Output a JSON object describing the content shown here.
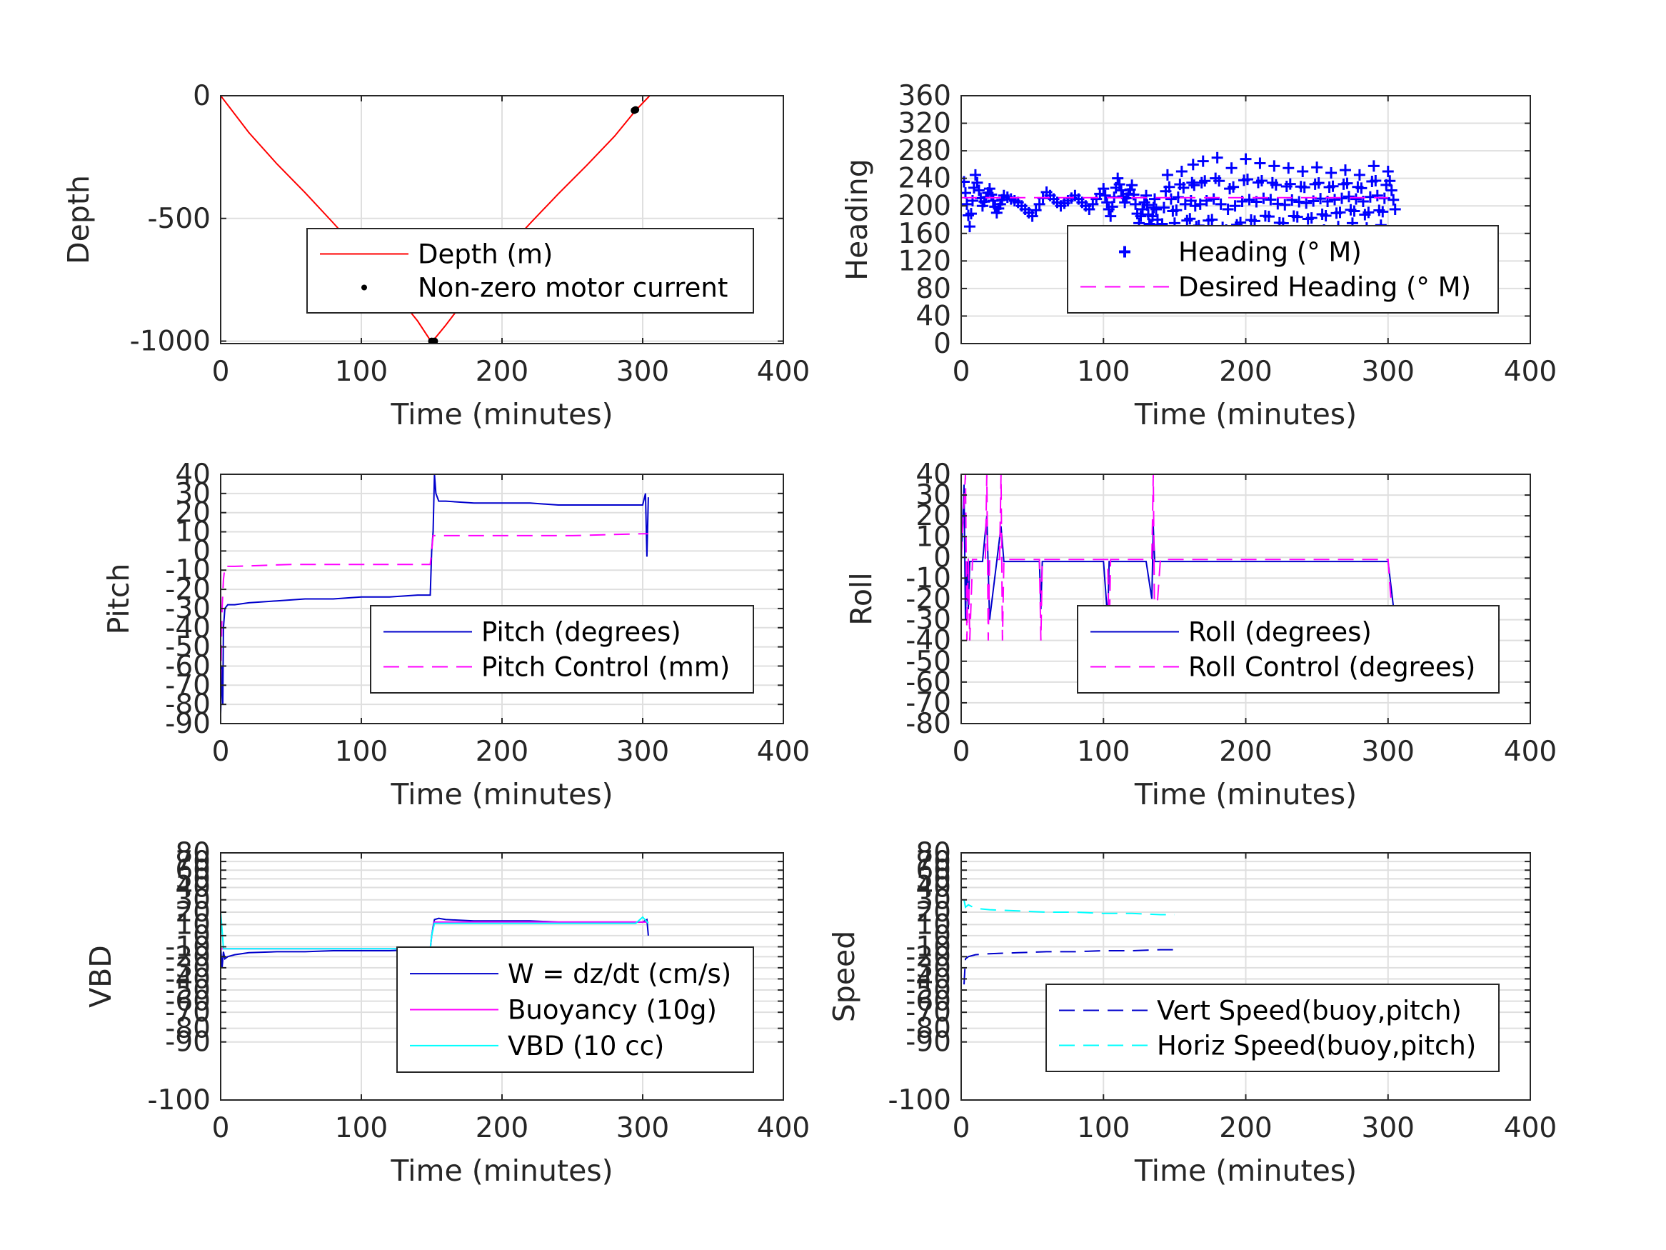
{
  "chart_data": [
    {
      "id": "depth",
      "type": "line",
      "xlabel": "Time (minutes)",
      "ylabel": "Depth",
      "xlim": [
        0,
        400
      ],
      "ylim": [
        -1010,
        0
      ],
      "xticks": [
        "0",
        "100",
        "200",
        "300",
        "400"
      ],
      "yticks": [
        {
          "v": 0,
          "t": "0"
        },
        {
          "v": -500,
          "t": "-500"
        },
        {
          "v": -1000,
          "t": "-1000"
        }
      ],
      "grid": true,
      "legend_position": "center-right",
      "series": [
        {
          "name": "Depth (m)",
          "color": "#ff0000",
          "style": "solid",
          "x": [
            0,
            20,
            40,
            60,
            80,
            100,
            120,
            140,
            150,
            160,
            180,
            200,
            220,
            240,
            260,
            280,
            295,
            305
          ],
          "y": [
            0,
            -150,
            -278,
            -395,
            -518,
            -645,
            -775,
            -918,
            -1005,
            -935,
            -785,
            -645,
            -520,
            -400,
            -285,
            -165,
            -60,
            0
          ]
        },
        {
          "name": "Non-zero motor current",
          "color": "#000000",
          "style": "markers",
          "x": [
            150,
            151,
            152,
            294,
            295
          ],
          "y": [
            -1000,
            -1001,
            -1000,
            -60,
            -57
          ]
        }
      ]
    },
    {
      "id": "heading",
      "type": "scatter",
      "xlabel": "Time (minutes)",
      "ylabel": "Heading",
      "xlim": [
        0,
        400
      ],
      "ylim": [
        0,
        360
      ],
      "xticks": [
        "0",
        "100",
        "200",
        "300",
        "400"
      ],
      "yticks": [
        {
          "v": 0,
          "t": "0"
        },
        {
          "v": 40,
          "t": "40"
        },
        {
          "v": 80,
          "t": "80"
        },
        {
          "v": 120,
          "t": "120"
        },
        {
          "v": 160,
          "t": "160"
        },
        {
          "v": 200,
          "t": "200"
        },
        {
          "v": 240,
          "t": "240"
        },
        {
          "v": 280,
          "t": "280"
        },
        {
          "v": 320,
          "t": "320"
        },
        {
          "v": 360,
          "t": "360"
        }
      ],
      "grid": true,
      "legend_position": "lower-right",
      "series": [
        {
          "name": "Heading (° M)",
          "color": "#0000ff",
          "style": "plus",
          "x": [
            2,
            6,
            10,
            15,
            20,
            25,
            30,
            40,
            50,
            60,
            70,
            80,
            90,
            100,
            105,
            110,
            115,
            120,
            125,
            130,
            133,
            136,
            140,
            145,
            150,
            155,
            160,
            163,
            166,
            170,
            175,
            180,
            185,
            190,
            195,
            200,
            205,
            210,
            215,
            220,
            225,
            230,
            235,
            240,
            245,
            250,
            255,
            260,
            265,
            270,
            275,
            280,
            285,
            290,
            295,
            300,
            305
          ],
          "y": [
            235,
            170,
            245,
            200,
            225,
            190,
            215,
            205,
            185,
            220,
            200,
            215,
            195,
            225,
            185,
            240,
            205,
            230,
            175,
            215,
            160,
            210,
            150,
            245,
            175,
            250,
            155,
            260,
            140,
            265,
            150,
            270,
            135,
            255,
            145,
            268,
            150,
            262,
            160,
            258,
            148,
            255,
            162,
            250,
            158,
            256,
            165,
            248,
            170,
            252,
            175,
            245,
            168,
            258,
            172,
            250,
            195
          ]
        },
        {
          "name": "Desired Heading (° M)",
          "color": "#ff00ff",
          "style": "dashed",
          "x": [
            0,
            50,
            100,
            150,
            200,
            250,
            300
          ],
          "y": [
            212,
            212,
            212,
            212,
            212,
            212,
            212
          ]
        }
      ]
    },
    {
      "id": "pitch",
      "type": "line",
      "xlabel": "Time (minutes)",
      "ylabel": "Pitch",
      "xlim": [
        0,
        400
      ],
      "ylim": [
        -90,
        40
      ],
      "xticks": [
        "0",
        "100",
        "200",
        "300",
        "400"
      ],
      "yticks": [
        {
          "v": 40,
          "t": "40"
        },
        {
          "v": 30,
          "t": "30"
        },
        {
          "v": 20,
          "t": "20"
        },
        {
          "v": 10,
          "t": "10"
        },
        {
          "v": 0,
          "t": "0"
        },
        {
          "v": -10,
          "t": "-10"
        },
        {
          "v": -20,
          "t": "-20"
        },
        {
          "v": -30,
          "t": "-30"
        },
        {
          "v": -40,
          "t": "-40"
        },
        {
          "v": -50,
          "t": "-50"
        },
        {
          "v": -60,
          "t": "-60"
        },
        {
          "v": -70,
          "t": "-70"
        },
        {
          "v": -80,
          "t": "-80"
        },
        {
          "v": -90,
          "t": "-90"
        }
      ],
      "grid": true,
      "legend_position": "lower-right",
      "series": [
        {
          "name": "Pitch (degrees)",
          "color": "#0000cc",
          "style": "solid",
          "x": [
            0,
            1,
            1.5,
            2,
            3,
            5,
            10,
            20,
            40,
            60,
            80,
            100,
            120,
            140,
            149,
            150,
            151,
            152,
            153,
            155,
            160,
            180,
            200,
            220,
            240,
            260,
            280,
            300,
            302,
            303,
            304
          ],
          "y": [
            -85,
            -60,
            -80,
            -40,
            -30,
            -28,
            -28,
            -27,
            -26,
            -25,
            -25,
            -24,
            -24,
            -23,
            -23,
            0,
            10,
            40,
            30,
            26,
            26,
            25,
            25,
            25,
            24,
            24,
            24,
            24,
            30,
            -3,
            28
          ]
        },
        {
          "name": "Pitch Control (mm)",
          "color": "#ff00ff",
          "style": "dashed",
          "x": [
            0,
            1,
            2,
            3,
            10,
            50,
            100,
            149,
            150,
            151,
            152,
            200,
            250,
            300,
            304
          ],
          "y": [
            -70,
            -30,
            -15,
            -8,
            -8,
            -7,
            -7,
            -7,
            0,
            8,
            8,
            8,
            8,
            9,
            9
          ]
        }
      ]
    },
    {
      "id": "roll",
      "type": "line",
      "xlabel": "Time (minutes)",
      "ylabel": "Roll",
      "xlim": [
        0,
        400
      ],
      "ylim": [
        -80,
        40
      ],
      "xticks": [
        "0",
        "100",
        "200",
        "300",
        "400"
      ],
      "yticks": [
        {
          "v": 40,
          "t": "40"
        },
        {
          "v": 30,
          "t": "30"
        },
        {
          "v": 20,
          "t": "20"
        },
        {
          "v": 10,
          "t": "10"
        },
        {
          "v": 0,
          "t": "0"
        },
        {
          "v": -10,
          "t": "-10"
        },
        {
          "v": -20,
          "t": "-20"
        },
        {
          "v": -30,
          "t": "-30"
        },
        {
          "v": -40,
          "t": "-40"
        },
        {
          "v": -50,
          "t": "-50"
        },
        {
          "v": -60,
          "t": "-60"
        },
        {
          "v": -70,
          "t": "-70"
        },
        {
          "v": -80,
          "t": "-80"
        }
      ],
      "grid": true,
      "legend_position": "lower-right",
      "series": [
        {
          "name": "Roll (degrees)",
          "color": "#0000cc",
          "style": "solid",
          "x": [
            0,
            2,
            3,
            4,
            5,
            6,
            10,
            15,
            18,
            20,
            25,
            28,
            30,
            40,
            55,
            56,
            57,
            80,
            100,
            103,
            104,
            105,
            130,
            134,
            135,
            136,
            140,
            150,
            160,
            170,
            180,
            190,
            200,
            210,
            220,
            230,
            240,
            250,
            260,
            270,
            280,
            290,
            300,
            304
          ],
          "y": [
            -2,
            35,
            -30,
            -2,
            -25,
            -2,
            -2,
            -2,
            20,
            -30,
            -2,
            15,
            -2,
            -2,
            -2,
            -25,
            -2,
            -2,
            -2,
            -30,
            -2,
            -2,
            -2,
            -20,
            15,
            -2,
            -2,
            -2,
            -2,
            -2,
            -2,
            -2,
            -2,
            -2,
            -2,
            -2,
            -2,
            -2,
            -2,
            -2,
            -2,
            -2,
            -2,
            -25
          ]
        },
        {
          "name": "Roll Control (degrees)",
          "color": "#ff00ff",
          "style": "dashed",
          "x": [
            0,
            3,
            4,
            5,
            6,
            8,
            17,
            18,
            19,
            20,
            21,
            27,
            28,
            29,
            30,
            31,
            55,
            56,
            57,
            103,
            104,
            105,
            134,
            135,
            136,
            140,
            150,
            160,
            170,
            180,
            190,
            200,
            210,
            220,
            230,
            240,
            250,
            260,
            270,
            280,
            290,
            300,
            304
          ],
          "y": [
            0,
            40,
            -40,
            0,
            -40,
            -1,
            -1,
            40,
            -40,
            -1,
            -1,
            -1,
            40,
            -40,
            -1,
            -1,
            -1,
            -40,
            -1,
            -1,
            -40,
            -1,
            -1,
            40,
            -40,
            -1,
            -1,
            -1,
            -1,
            -1,
            -1,
            -1,
            -1,
            -1,
            -1,
            -1,
            -1,
            -1,
            -1,
            -1,
            -1,
            -1,
            -40
          ]
        }
      ]
    },
    {
      "id": "vbd",
      "type": "line",
      "xlabel": "Time (minutes)",
      "ylabel": "VBD",
      "xlim": [
        0,
        400
      ],
      "ylim": [
        -100,
        80
      ],
      "xticks": [
        "0",
        "100",
        "200",
        "300",
        "400"
      ],
      "yticks": [
        {
          "v": 80,
          "t": "80"
        },
        {
          "v": 70,
          "t": "70"
        },
        {
          "v": 60,
          "t": "60"
        },
        {
          "v": 50,
          "t": "50"
        },
        {
          "v": 40,
          "t": "40"
        },
        {
          "v": 30,
          "t": "30"
        },
        {
          "v": 20,
          "t": "20"
        },
        {
          "v": 10,
          "t": "10"
        },
        {
          "v": 0,
          "t": "0"
        },
        {
          "v": -10,
          "t": "-10"
        },
        {
          "v": -20,
          "t": "-20"
        },
        {
          "v": -30,
          "t": "-30"
        },
        {
          "v": -40,
          "t": "-40"
        },
        {
          "v": -50,
          "t": "-50"
        },
        {
          "v": -60,
          "t": "-60"
        },
        {
          "v": -70,
          "t": "-70"
        },
        {
          "v": -80,
          "t": "-80"
        },
        {
          "v": -90,
          "t": "-90"
        },
        {
          "v": -100,
          "t": "-100"
        }
      ],
      "grid": true,
      "legend_position": "center-right",
      "series": [
        {
          "name": "W = dz/dt (cm/s)",
          "color": "#0000cc",
          "style": "solid",
          "x": [
            0,
            1,
            2,
            3,
            5,
            10,
            20,
            40,
            60,
            80,
            100,
            120,
            140,
            149,
            150,
            151,
            152,
            155,
            160,
            180,
            200,
            220,
            240,
            260,
            280,
            300,
            303,
            304
          ],
          "y": [
            -10,
            -30,
            -15,
            -22,
            -20,
            -18,
            -16,
            -15,
            -15,
            -14,
            -14,
            -14,
            -13,
            -13,
            0,
            8,
            14,
            15,
            14,
            13,
            13,
            13,
            12,
            12,
            12,
            12,
            14,
            0
          ]
        },
        {
          "name": "Buoyancy (10g)",
          "color": "#ff00ff",
          "style": "solid",
          "x": [
            0,
            2,
            5,
            50,
            100,
            149,
            150,
            152,
            200,
            250,
            300,
            304
          ],
          "y": [
            -12,
            -12,
            -12,
            -12,
            -12,
            -12,
            0,
            12,
            12,
            12,
            12,
            12
          ]
        },
        {
          "name": "VBD (10 cc)",
          "color": "#00ffff",
          "style": "solid",
          "x": [
            0,
            1,
            2,
            5,
            50,
            100,
            149,
            150,
            152,
            200,
            250,
            295,
            300,
            304
          ],
          "y": [
            20,
            5,
            -12,
            -12,
            -12,
            -12,
            -12,
            0,
            11,
            11,
            11,
            11,
            16,
            11
          ]
        }
      ]
    },
    {
      "id": "speed",
      "type": "line",
      "xlabel": "Time (minutes)",
      "ylabel": "Speed",
      "xlim": [
        0,
        400
      ],
      "ylim": [
        -100,
        80
      ],
      "xticks": [
        "0",
        "100",
        "200",
        "300",
        "400"
      ],
      "yticks": [
        {
          "v": 80,
          "t": "80"
        },
        {
          "v": 70,
          "t": "70"
        },
        {
          "v": 60,
          "t": "60"
        },
        {
          "v": 50,
          "t": "50"
        },
        {
          "v": 40,
          "t": "40"
        },
        {
          "v": 30,
          "t": "30"
        },
        {
          "v": 20,
          "t": "20"
        },
        {
          "v": 10,
          "t": "10"
        },
        {
          "v": 0,
          "t": "0"
        },
        {
          "v": -10,
          "t": "-10"
        },
        {
          "v": -20,
          "t": "-20"
        },
        {
          "v": -30,
          "t": "-30"
        },
        {
          "v": -40,
          "t": "-40"
        },
        {
          "v": -50,
          "t": "-50"
        },
        {
          "v": -60,
          "t": "-60"
        },
        {
          "v": -70,
          "t": "-70"
        },
        {
          "v": -80,
          "t": "-80"
        },
        {
          "v": -90,
          "t": "-90"
        },
        {
          "v": -100,
          "t": "-100"
        }
      ],
      "grid": true,
      "legend_position": "lower-right",
      "series": [
        {
          "name": "Vert Speed(buoy,pitch)",
          "color": "#0000cc",
          "style": "dashed",
          "x": [
            2,
            3,
            5,
            10,
            20,
            40,
            60,
            80,
            100,
            120,
            140,
            150
          ],
          "y": [
            -45,
            -22,
            -20,
            -18,
            -17,
            -16,
            -15,
            -15,
            -14,
            -14,
            -13,
            -13
          ]
        },
        {
          "name": "Horiz Speed(buoy,pitch)",
          "color": "#00ffff",
          "style": "dashed",
          "x": [
            2,
            3,
            5,
            10,
            20,
            40,
            60,
            80,
            100,
            120,
            140,
            150
          ],
          "y": [
            30,
            24,
            26,
            23,
            22,
            21,
            20,
            20,
            19,
            19,
            18,
            18
          ]
        }
      ]
    }
  ]
}
